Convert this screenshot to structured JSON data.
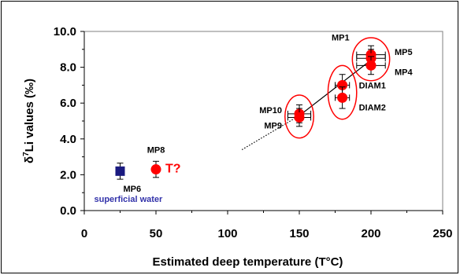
{
  "chart_data": {
    "type": "scatter",
    "title": "",
    "xlabel": "Estimated deep temperature (T°C)",
    "ylabel_prefix": "δ",
    "ylabel_sup": "7",
    "ylabel_rest": "Li values (‰)",
    "xlim": [
      0,
      250
    ],
    "ylim": [
      0,
      10
    ],
    "xticks": [
      "0",
      "50",
      "100",
      "150",
      "200",
      "250"
    ],
    "yticks": [
      "0.0",
      "2.0",
      "4.0",
      "6.0",
      "8.0",
      "10.0"
    ],
    "grid": false,
    "points": [
      {
        "label": "MP1",
        "x": 200,
        "y": 8.7,
        "xerr": 10,
        "yerr": 0.5,
        "color": "#ff0000",
        "shape": "circle"
      },
      {
        "label": "MP5",
        "x": 200,
        "y": 8.5,
        "xerr": 10,
        "yerr": 0.5,
        "color": "#ff0000",
        "shape": "circle"
      },
      {
        "label": "MP4",
        "x": 200,
        "y": 8.1,
        "xerr": 10,
        "yerr": 0.5,
        "color": "#ff0000",
        "shape": "circle"
      },
      {
        "label": "DIAM1",
        "x": 180,
        "y": 7.0,
        "xerr": 5,
        "yerr": 0.6,
        "color": "#ff0000",
        "shape": "circle"
      },
      {
        "label": "DIAM2",
        "x": 180,
        "y": 6.3,
        "xerr": 5,
        "yerr": 0.6,
        "color": "#ff0000",
        "shape": "circle"
      },
      {
        "label": "MP10",
        "x": 150,
        "y": 5.4,
        "xerr": 8,
        "yerr": 0.5,
        "color": "#ff0000",
        "shape": "circle"
      },
      {
        "label": "MP9",
        "x": 150,
        "y": 5.2,
        "xerr": 8,
        "yerr": 0.5,
        "color": "#ff0000",
        "shape": "circle"
      },
      {
        "label": "MP8",
        "x": 50,
        "y": 2.3,
        "xerr": 0,
        "yerr": 0.45,
        "color": "#ff0000",
        "shape": "circle"
      },
      {
        "label": "MP6",
        "x": 25,
        "y": 2.2,
        "xerr": 0,
        "yerr": 0.45,
        "color": "#1a1a80",
        "shape": "square"
      }
    ],
    "annotations": {
      "t_question": "T?",
      "superficial": "superficial water"
    },
    "fit_line": {
      "solid": [
        [
          150,
          5.3
        ],
        [
          200,
          8.4
        ]
      ],
      "dotted": [
        [
          110,
          3.4
        ],
        [
          150,
          5.3
        ]
      ]
    },
    "ellipses": [
      {
        "cx": 150,
        "cy": 5.25,
        "rx_data": 10,
        "ry_data": 1.2
      },
      {
        "cx": 180,
        "cy": 6.6,
        "rx_data": 10,
        "ry_data": 1.5
      },
      {
        "cx": 200,
        "cy": 8.45,
        "rx_data": 13,
        "ry_data": 1.2
      }
    ],
    "colors": {
      "ellipse": "#ff0000",
      "point_red": "#ff0000",
      "point_blue": "#1a1a80",
      "label_blue": "#3333aa",
      "t_red": "#ff0000"
    }
  }
}
